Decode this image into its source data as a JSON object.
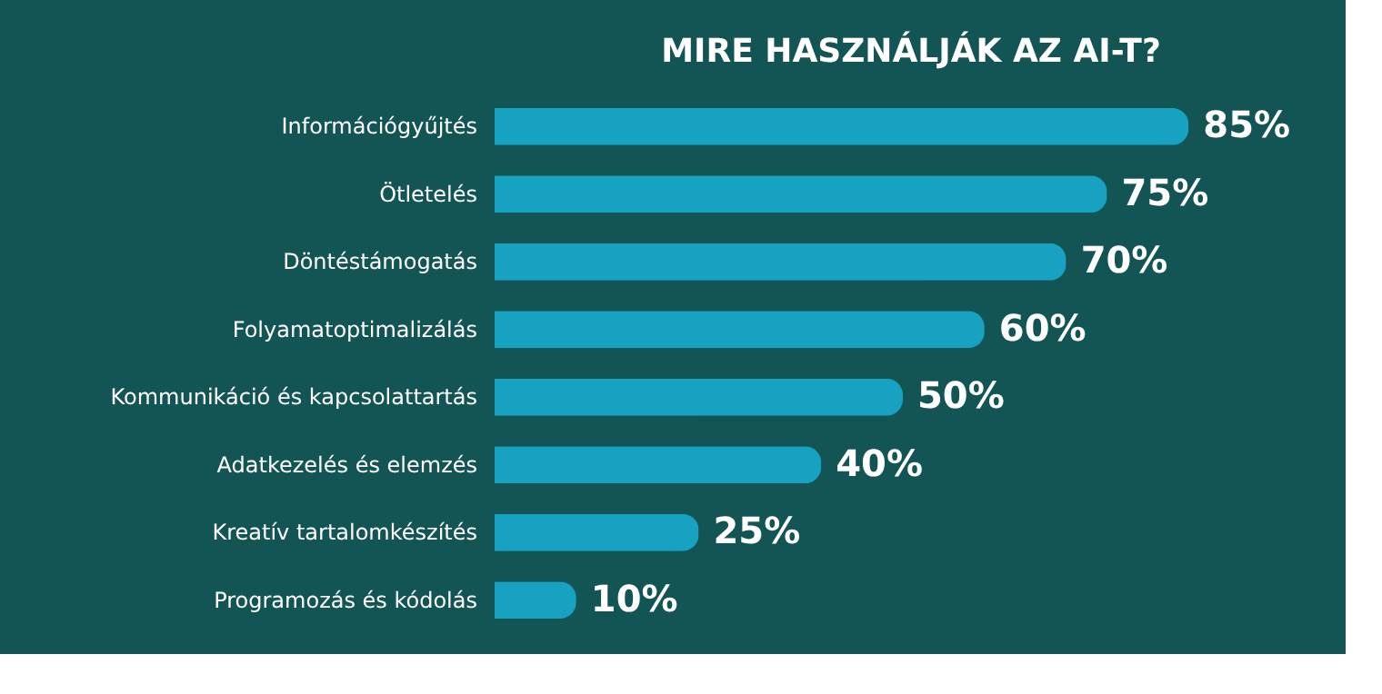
{
  "chart_data": {
    "type": "bar",
    "orientation": "horizontal",
    "title": "MIRE HASZNÁLJÁK AZ AI-T?",
    "categories": [
      "Információgyűjtés",
      "Ötletelés",
      "Döntéstámogatás",
      "Folyamatoptimalizálás",
      "Kommunikáció és kapcsolattartás",
      "Adatkezelés és elemzés",
      "Kreatív tartalomkészítés",
      "Programozás és kódolás"
    ],
    "values": [
      85,
      75,
      70,
      60,
      50,
      40,
      25,
      10
    ],
    "value_labels": [
      "85%",
      "75%",
      "70%",
      "60%",
      "50%",
      "40%",
      "25%",
      "10%"
    ],
    "color": "#17a2c2",
    "grid": false
  }
}
